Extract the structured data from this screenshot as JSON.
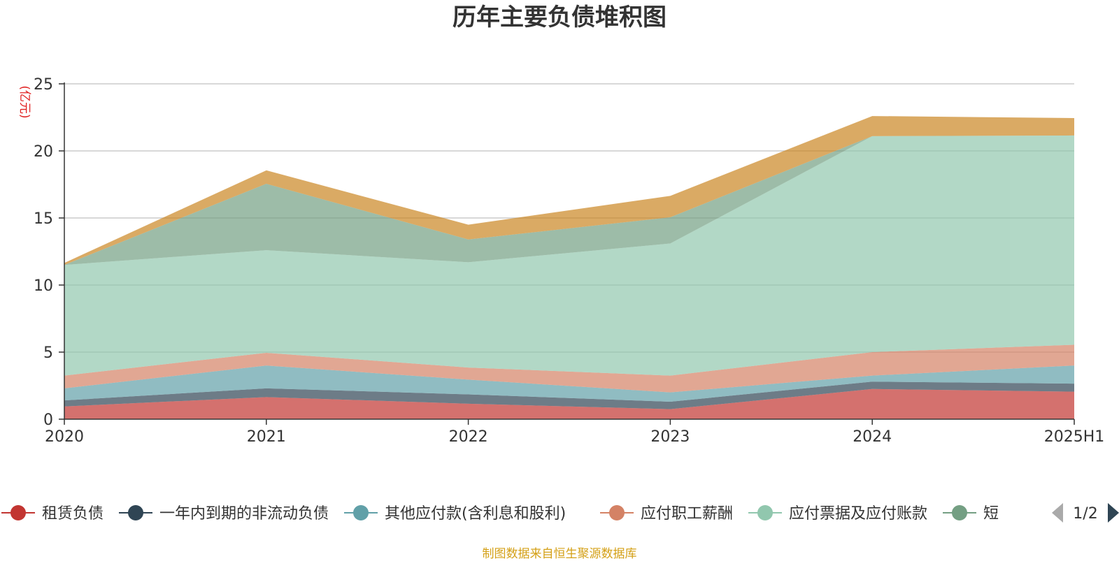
{
  "chart_data": {
    "type": "area",
    "title": "历年主要负债堆积图",
    "ylabel": "(亿元)",
    "ylim": [
      0,
      25
    ],
    "yticks": [
      0,
      5,
      10,
      15,
      20,
      25
    ],
    "grid": true,
    "stacked": true,
    "categories": [
      "2020",
      "2021",
      "2022",
      "2023",
      "2024",
      "2025H1"
    ],
    "series": [
      {
        "name": "租赁负债",
        "color": "#c23531",
        "values": [
          0.95,
          1.65,
          1.15,
          0.75,
          2.25,
          2.05
        ]
      },
      {
        "name": "一年内到期的非流动负债",
        "color": "#2f4554",
        "values": [
          0.45,
          0.65,
          0.7,
          0.55,
          0.55,
          0.6
        ]
      },
      {
        "name": "其他应付款(含利息和股利)",
        "color": "#61a0a8",
        "values": [
          0.9,
          1.7,
          1.1,
          0.7,
          0.45,
          1.35
        ]
      },
      {
        "name": "应付职工薪酬",
        "color": "#d48265",
        "values": [
          0.95,
          0.95,
          0.9,
          1.25,
          1.75,
          1.55
        ]
      },
      {
        "name": "应付票据及应付账款",
        "color": "#91c7ae",
        "values": [
          8.25,
          7.65,
          7.85,
          9.85,
          16.1,
          15.6
        ]
      },
      {
        "name": "短",
        "color": "#749f83",
        "values": [
          0.0,
          4.95,
          1.7,
          1.95,
          0.0,
          0.0
        ]
      },
      {
        "name": "",
        "color": "#ca8622",
        "values": [
          0.15,
          1.0,
          1.1,
          1.6,
          1.5,
          1.3
        ]
      }
    ]
  },
  "legend": {
    "items": [
      {
        "label": "租赁负债",
        "color": "#c23531"
      },
      {
        "label": "一年内到期的非流动负债",
        "color": "#2f4554"
      },
      {
        "label": "其他应付款(含利息和股利)",
        "color": "#61a0a8"
      },
      {
        "label": "应付职工薪酬",
        "color": "#d48265"
      },
      {
        "label": "应付票据及应付账款",
        "color": "#91c7ae"
      },
      {
        "label": "短",
        "color": "#749f83"
      }
    ],
    "page_label": "1/2"
  },
  "source": "制图数据来自恒生聚源数据库"
}
